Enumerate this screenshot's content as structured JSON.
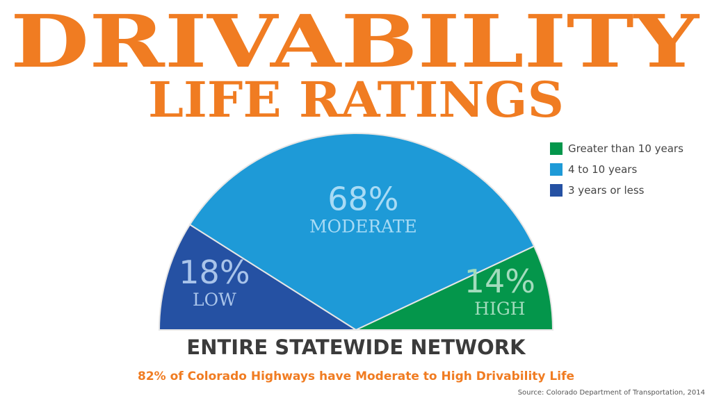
{
  "chart_data": {
    "type": "half-pie",
    "title": "DRIVABILITY",
    "subtitle": "LIFE RATINGS",
    "categories": [
      "LOW",
      "MODERATE",
      "HIGH"
    ],
    "values": [
      18,
      68,
      14
    ],
    "value_labels": [
      "18%",
      "68%",
      "14%"
    ],
    "colors": [
      "#2551a3",
      "#1e9ad7",
      "#04964b"
    ],
    "legend": [
      "3 years or less",
      "4 to 10 years",
      "Greater than 10 years"
    ],
    "xlabel": "ENTIRE STATEWIDE NETWORK",
    "annotation": "82% of Colorado Highways have Moderate to High Drivability Life",
    "source": "Source: Colorado Department of Transportation, 2014"
  }
}
